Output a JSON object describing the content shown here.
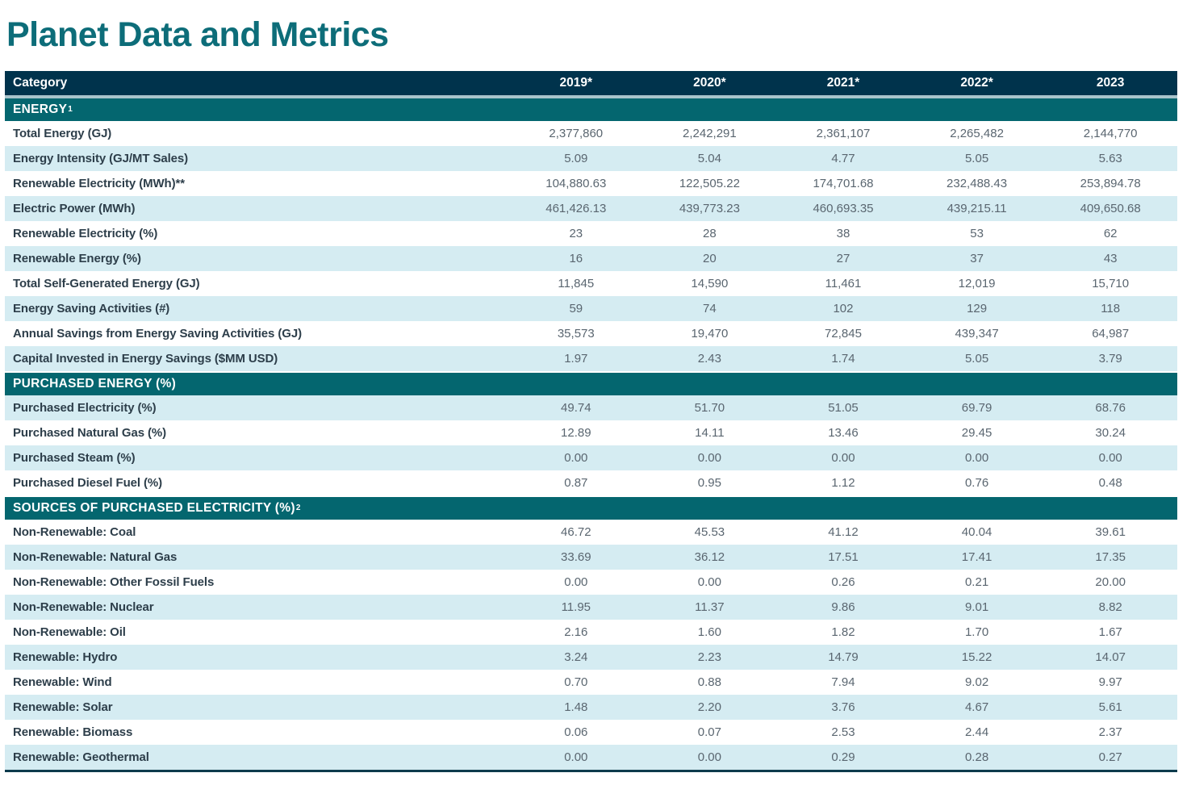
{
  "page_title": "Planet Data and Metrics",
  "colors": {
    "title_teal": "#0d6d79",
    "header_navy": "#00334c",
    "section_teal": "#04666f",
    "row_alt_blue": "#d5ecf2",
    "header_separator": "#a8c3cb",
    "label_text": "#2d3e4a",
    "value_text": "#5a6670",
    "bottom_border": "#0d3b4c"
  },
  "table": {
    "header": {
      "category_label": "Category",
      "year_columns": [
        "2019*",
        "2020*",
        "2021*",
        "2022*",
        "2023"
      ]
    },
    "sections": [
      {
        "title": "ENERGY",
        "title_superscript": "1",
        "rows": [
          {
            "label": "Total Energy (GJ)",
            "values": [
              "2,377,860",
              "2,242,291",
              "2,361,107",
              "2,265,482",
              "2,144,770"
            ]
          },
          {
            "label": "Energy Intensity (GJ/MT Sales)",
            "values": [
              "5.09",
              "5.04",
              "4.77",
              "5.05",
              "5.63"
            ]
          },
          {
            "label": "Renewable Electricity (MWh)**",
            "values": [
              "104,880.63",
              "122,505.22",
              "174,701.68",
              "232,488.43",
              "253,894.78"
            ]
          },
          {
            "label": "Electric Power (MWh)",
            "values": [
              "461,426.13",
              "439,773.23",
              "460,693.35",
              "439,215.11",
              "409,650.68"
            ]
          },
          {
            "label": "Renewable Electricity (%)",
            "values": [
              "23",
              "28",
              "38",
              "53",
              "62"
            ]
          },
          {
            "label": "Renewable Energy (%)",
            "values": [
              "16",
              "20",
              "27",
              "37",
              "43"
            ]
          },
          {
            "label": "Total Self-Generated Energy (GJ)",
            "values": [
              "11,845",
              "14,590",
              "11,461",
              "12,019",
              "15,710"
            ]
          },
          {
            "label": "Energy Saving Activities (#)",
            "values": [
              "59",
              "74",
              "102",
              "129",
              "118"
            ]
          },
          {
            "label": "Annual Savings from Energy Saving Activities (GJ)",
            "values": [
              "35,573",
              "19,470",
              "72,845",
              "439,347",
              "64,987"
            ]
          },
          {
            "label": "Capital Invested in Energy Savings ($MM USD)",
            "values": [
              "1.97",
              "2.43",
              "1.74",
              "5.05",
              "3.79"
            ]
          }
        ]
      },
      {
        "title": "PURCHASED ENERGY (%)",
        "title_superscript": "",
        "rows": [
          {
            "label": "Purchased Electricity (%)",
            "values": [
              "49.74",
              "51.70",
              "51.05",
              "69.79",
              "68.76"
            ]
          },
          {
            "label": "Purchased Natural Gas (%)",
            "values": [
              "12.89",
              "14.11",
              "13.46",
              "29.45",
              "30.24"
            ]
          },
          {
            "label": "Purchased Steam (%)",
            "values": [
              "0.00",
              "0.00",
              "0.00",
              "0.00",
              "0.00"
            ]
          },
          {
            "label": "Purchased Diesel Fuel (%)",
            "values": [
              "0.87",
              "0.95",
              "1.12",
              "0.76",
              "0.48"
            ]
          }
        ]
      },
      {
        "title": "SOURCES OF PURCHASED ELECTRICITY (%)",
        "title_superscript": "2",
        "rows": [
          {
            "label": "Non-Renewable: Coal",
            "values": [
              "46.72",
              "45.53",
              "41.12",
              "40.04",
              "39.61"
            ]
          },
          {
            "label": "Non-Renewable: Natural Gas",
            "values": [
              "33.69",
              "36.12",
              "17.51",
              "17.41",
              "17.35"
            ]
          },
          {
            "label": "Non-Renewable: Other Fossil Fuels",
            "values": [
              "0.00",
              "0.00",
              "0.26",
              "0.21",
              "20.00"
            ]
          },
          {
            "label": "Non-Renewable: Nuclear",
            "values": [
              "11.95",
              "11.37",
              "9.86",
              "9.01",
              "8.82"
            ]
          },
          {
            "label": "Non-Renewable: Oil",
            "values": [
              "2.16",
              "1.60",
              "1.82",
              "1.70",
              "1.67"
            ]
          },
          {
            "label": "Renewable: Hydro",
            "values": [
              "3.24",
              "2.23",
              "14.79",
              "15.22",
              "14.07"
            ]
          },
          {
            "label": "Renewable: Wind",
            "values": [
              "0.70",
              "0.88",
              "7.94",
              "9.02",
              "9.97"
            ]
          },
          {
            "label": "Renewable: Solar",
            "values": [
              "1.48",
              "2.20",
              "3.76",
              "4.67",
              "5.61"
            ]
          },
          {
            "label": "Renewable: Biomass",
            "values": [
              "0.06",
              "0.07",
              "2.53",
              "2.44",
              "2.37"
            ]
          },
          {
            "label": "Renewable: Geothermal",
            "values": [
              "0.00",
              "0.00",
              "0.29",
              "0.28",
              "0.27"
            ]
          }
        ]
      }
    ]
  }
}
